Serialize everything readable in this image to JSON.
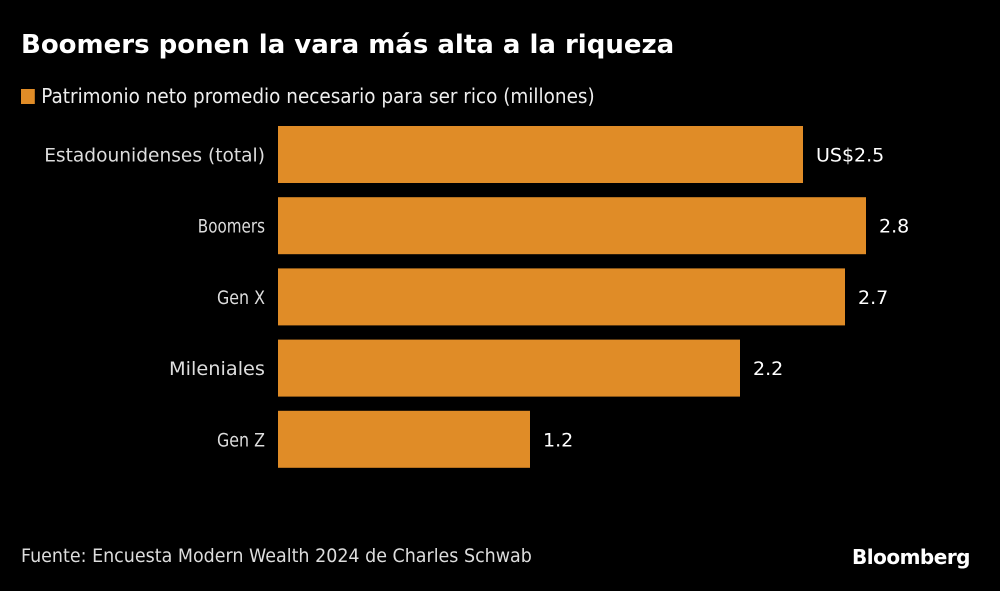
{
  "title": "Boomers ponen la vara más alta a la riqueza",
  "source": "Fuente: Encuesta Modern Wealth 2024 de Charles Schwab",
  "logo": "Bloomberg",
  "chart_data": {
    "type": "bar",
    "orientation": "horizontal",
    "categories": [
      "Estadounidenses (total)",
      "Boomers",
      "Gen X",
      "Mileniales",
      "Gen Z"
    ],
    "series": [
      {
        "name": "Patrimonio neto promedio necesario para ser rico (millones)",
        "values": [
          2.5,
          2.8,
          2.7,
          2.2,
          1.2
        ],
        "color": "#E08C27"
      }
    ],
    "data_labels": [
      "US$2.5",
      "2.8",
      "2.7",
      "2.2",
      "1.2"
    ],
    "xlim": [
      0,
      2.8
    ],
    "grid": false,
    "legend_position": "top-left"
  }
}
